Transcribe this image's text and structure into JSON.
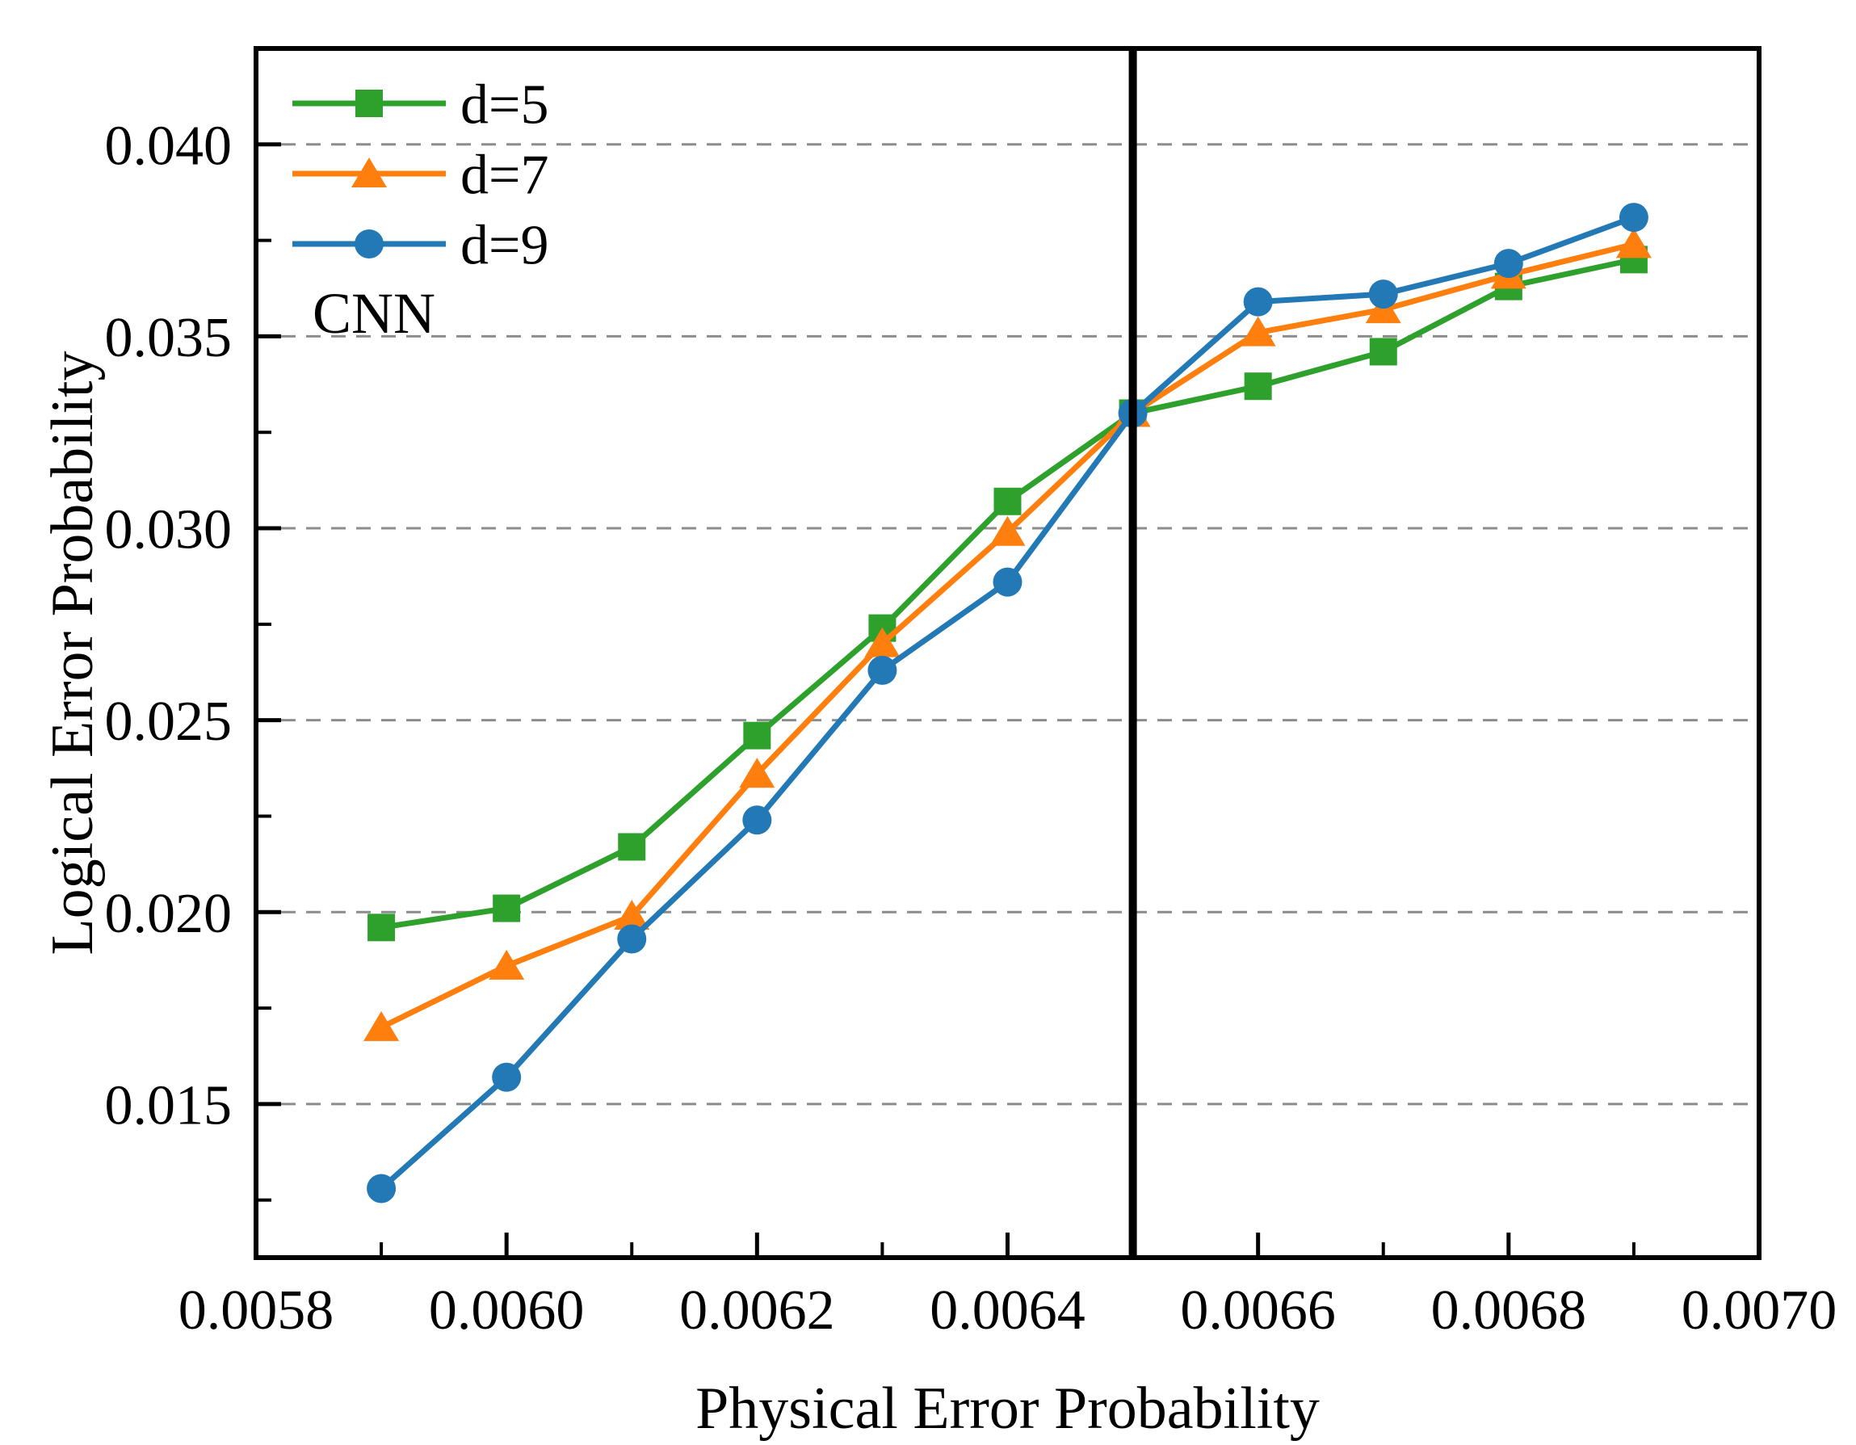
{
  "figure": {
    "kind": "scientific line figure",
    "background": "#ffffff"
  },
  "chart_data": {
    "type": "line",
    "title": "",
    "xlabel": "Physical Error Probability",
    "ylabel": "Logical Error Probability",
    "annotation": "CNN",
    "x": [
      0.0059,
      0.006,
      0.0061,
      0.0062,
      0.0063,
      0.0064,
      0.0065,
      0.0066,
      0.0067,
      0.0068,
      0.0069
    ],
    "series": [
      {
        "name": "d=5",
        "marker": "square",
        "color": "#2EA12C",
        "values": [
          0.0196,
          0.0201,
          0.0217,
          0.0246,
          0.0274,
          0.0307,
          0.033,
          0.0337,
          0.0346,
          0.0363,
          0.037
        ]
      },
      {
        "name": "d=7",
        "marker": "triangle",
        "color": "#FF7F0E",
        "values": [
          0.017,
          0.0186,
          0.0199,
          0.0236,
          0.027,
          0.0299,
          0.033,
          0.0351,
          0.0357,
          0.0366,
          0.0374
        ]
      },
      {
        "name": "d=9",
        "marker": "circle",
        "color": "#2279B5",
        "values": [
          0.0128,
          0.0157,
          0.0193,
          0.0224,
          0.0263,
          0.0286,
          0.033,
          0.0359,
          0.0361,
          0.0369,
          0.0381
        ]
      }
    ],
    "xlim": [
      0.0058,
      0.007
    ],
    "ylim": [
      0.011,
      0.0425
    ],
    "xticks": [
      0.0058,
      0.006,
      0.0062,
      0.0064,
      0.0066,
      0.0068,
      0.007
    ],
    "xtick_labels": [
      "0.0058",
      "0.0060",
      "0.0062",
      "0.0064",
      "0.0066",
      "0.0068",
      "0.0070"
    ],
    "yticks": [
      0.015,
      0.02,
      0.025,
      0.03,
      0.035,
      0.04
    ],
    "ytick_labels": [
      "0.015",
      "0.020",
      "0.025",
      "0.030",
      "0.035",
      "0.040"
    ],
    "threshold_x": 0.0065,
    "grid": "horizontal-dashed",
    "grid_color": "#8c8c8c",
    "threshold_color": "#000000",
    "axis_color": "#000000",
    "legend_position": "top-left"
  }
}
